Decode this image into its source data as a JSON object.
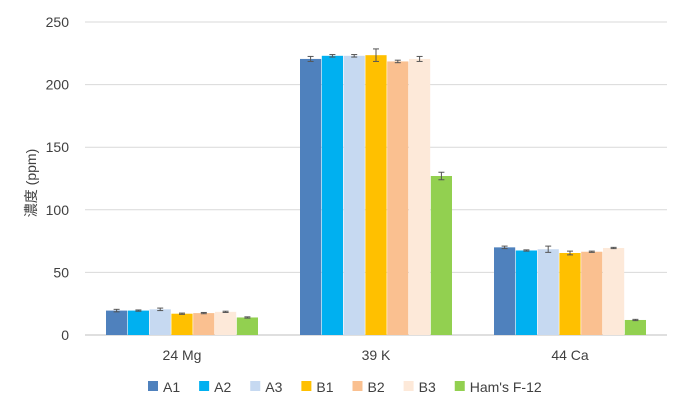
{
  "chart_data": {
    "type": "bar",
    "title": "",
    "xlabel": "",
    "ylabel": "濃度 (ppm)",
    "ylim": [
      0,
      250
    ],
    "yticks": [
      0,
      50,
      100,
      150,
      200,
      250
    ],
    "grid": true,
    "legend_position": "bottom",
    "categories": [
      "24 Mg",
      "39 K",
      "44 Ca"
    ],
    "series": [
      {
        "name": "A1",
        "color": "#4f81bd",
        "values": [
          19.5,
          220.5,
          70.0
        ],
        "errors": [
          1.0,
          2.0,
          1.0
        ]
      },
      {
        "name": "A2",
        "color": "#00b0f0",
        "values": [
          19.5,
          223.0,
          67.5
        ],
        "errors": [
          0.5,
          1.0,
          0.5
        ]
      },
      {
        "name": "A3",
        "color": "#c6d9f1",
        "values": [
          20.5,
          223.0,
          68.5
        ],
        "errors": [
          1.0,
          1.0,
          2.5
        ]
      },
      {
        "name": "B1",
        "color": "#ffc000",
        "values": [
          17.0,
          223.5,
          65.5
        ],
        "errors": [
          0.5,
          5.0,
          1.5
        ]
      },
      {
        "name": "B2",
        "color": "#fac090",
        "values": [
          17.5,
          218.5,
          66.5
        ],
        "errors": [
          0.5,
          1.0,
          0.5
        ]
      },
      {
        "name": "B3",
        "color": "#fde9d9",
        "values": [
          18.5,
          220.5,
          69.5
        ],
        "errors": [
          0.5,
          2.0,
          0.5
        ]
      },
      {
        "name": "Ham's F-12",
        "color": "#92d050",
        "values": [
          14.0,
          127.0,
          12.0
        ],
        "errors": [
          0.5,
          3.0,
          0.5
        ]
      }
    ]
  }
}
